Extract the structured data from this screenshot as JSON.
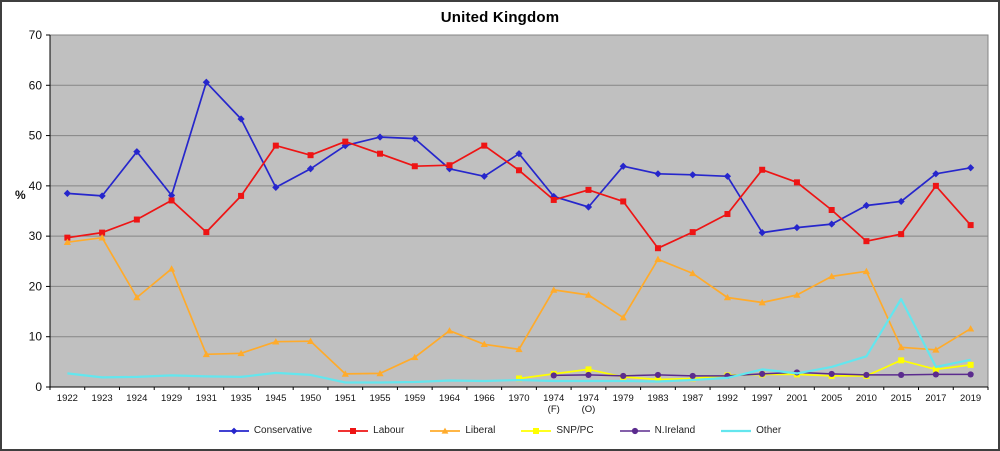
{
  "title": "United Kingdom",
  "chart_data": {
    "type": "line",
    "title": "United Kingdom",
    "xlabel": "",
    "ylabel": "%",
    "ylim": [
      0,
      70
    ],
    "y_ticks": [
      0,
      10,
      20,
      30,
      40,
      50,
      60,
      70
    ],
    "grid": true,
    "legend_position": "bottom",
    "plot_bg": "#c0c0c0",
    "grid_color": "#858585",
    "axis_color": "#000000",
    "label_color": "#111111",
    "categories": [
      "1922",
      "1923",
      "1924",
      "1929",
      "1931",
      "1935",
      "1945",
      "1950",
      "1951",
      "1955",
      "1959",
      "1964",
      "1966",
      "1970",
      "1974 (F)",
      "1974 (O)",
      "1979",
      "1983",
      "1987",
      "1992",
      "1997",
      "2001",
      "2005",
      "2010",
      "2015",
      "2017",
      "2019"
    ],
    "series": [
      {
        "name": "Conservative",
        "color": "#2626cc",
        "marker": "diamond",
        "line_width": 1.7,
        "values": [
          38.5,
          38.0,
          46.8,
          38.1,
          60.6,
          53.3,
          39.7,
          43.4,
          48.0,
          49.7,
          49.4,
          43.4,
          41.9,
          46.4,
          37.9,
          35.8,
          43.9,
          42.4,
          42.2,
          41.9,
          30.7,
          31.7,
          32.4,
          36.1,
          36.9,
          42.4,
          43.6
        ]
      },
      {
        "name": "Labour",
        "color": "#ee1414",
        "marker": "square",
        "line_width": 1.7,
        "values": [
          29.7,
          30.7,
          33.3,
          37.1,
          30.8,
          38.0,
          48.0,
          46.1,
          48.8,
          46.4,
          43.9,
          44.1,
          48.0,
          43.1,
          37.2,
          39.2,
          36.9,
          27.6,
          30.8,
          34.4,
          43.2,
          40.7,
          35.2,
          29.0,
          30.4,
          40.0,
          32.2
        ]
      },
      {
        "name": "Liberal",
        "color": "#ffab2b",
        "marker": "triangle",
        "line_width": 1.7,
        "values": [
          28.8,
          29.7,
          17.8,
          23.5,
          6.5,
          6.7,
          9.0,
          9.1,
          2.6,
          2.7,
          5.9,
          11.2,
          8.5,
          7.5,
          19.3,
          18.3,
          13.8,
          25.4,
          22.6,
          17.8,
          16.8,
          18.3,
          22.0,
          23.0,
          7.9,
          7.4,
          11.6
        ]
      },
      {
        "name": "SNP/PC",
        "color": "#ffff00",
        "marker": "square",
        "line_width": 1.7,
        "values": [
          null,
          null,
          null,
          null,
          null,
          null,
          null,
          null,
          null,
          null,
          null,
          null,
          null,
          1.7,
          2.6,
          3.5,
          2.0,
          1.5,
          1.7,
          2.3,
          2.5,
          2.5,
          2.2,
          2.2,
          5.3,
          3.5,
          4.4
        ]
      },
      {
        "name": "N.Ireland",
        "color": "#5b2b8e",
        "marker": "circle",
        "line_width": 1.5,
        "values": [
          null,
          null,
          null,
          null,
          null,
          null,
          null,
          null,
          null,
          null,
          null,
          null,
          null,
          null,
          2.3,
          2.4,
          2.2,
          2.4,
          2.2,
          2.2,
          2.6,
          2.9,
          2.6,
          2.4,
          2.4,
          2.5,
          2.5
        ]
      },
      {
        "name": "Other",
        "color": "#63e6ee",
        "marker": "none",
        "line_width": 2.2,
        "values": [
          2.7,
          1.9,
          2.0,
          2.3,
          2.1,
          2.0,
          2.8,
          2.4,
          0.9,
          0.9,
          1.0,
          1.3,
          1.2,
          1.4,
          1.2,
          1.2,
          1.2,
          1.1,
          1.4,
          1.8,
          3.5,
          2.7,
          4.0,
          6.1,
          17.5,
          4.0,
          5.4
        ]
      }
    ]
  }
}
